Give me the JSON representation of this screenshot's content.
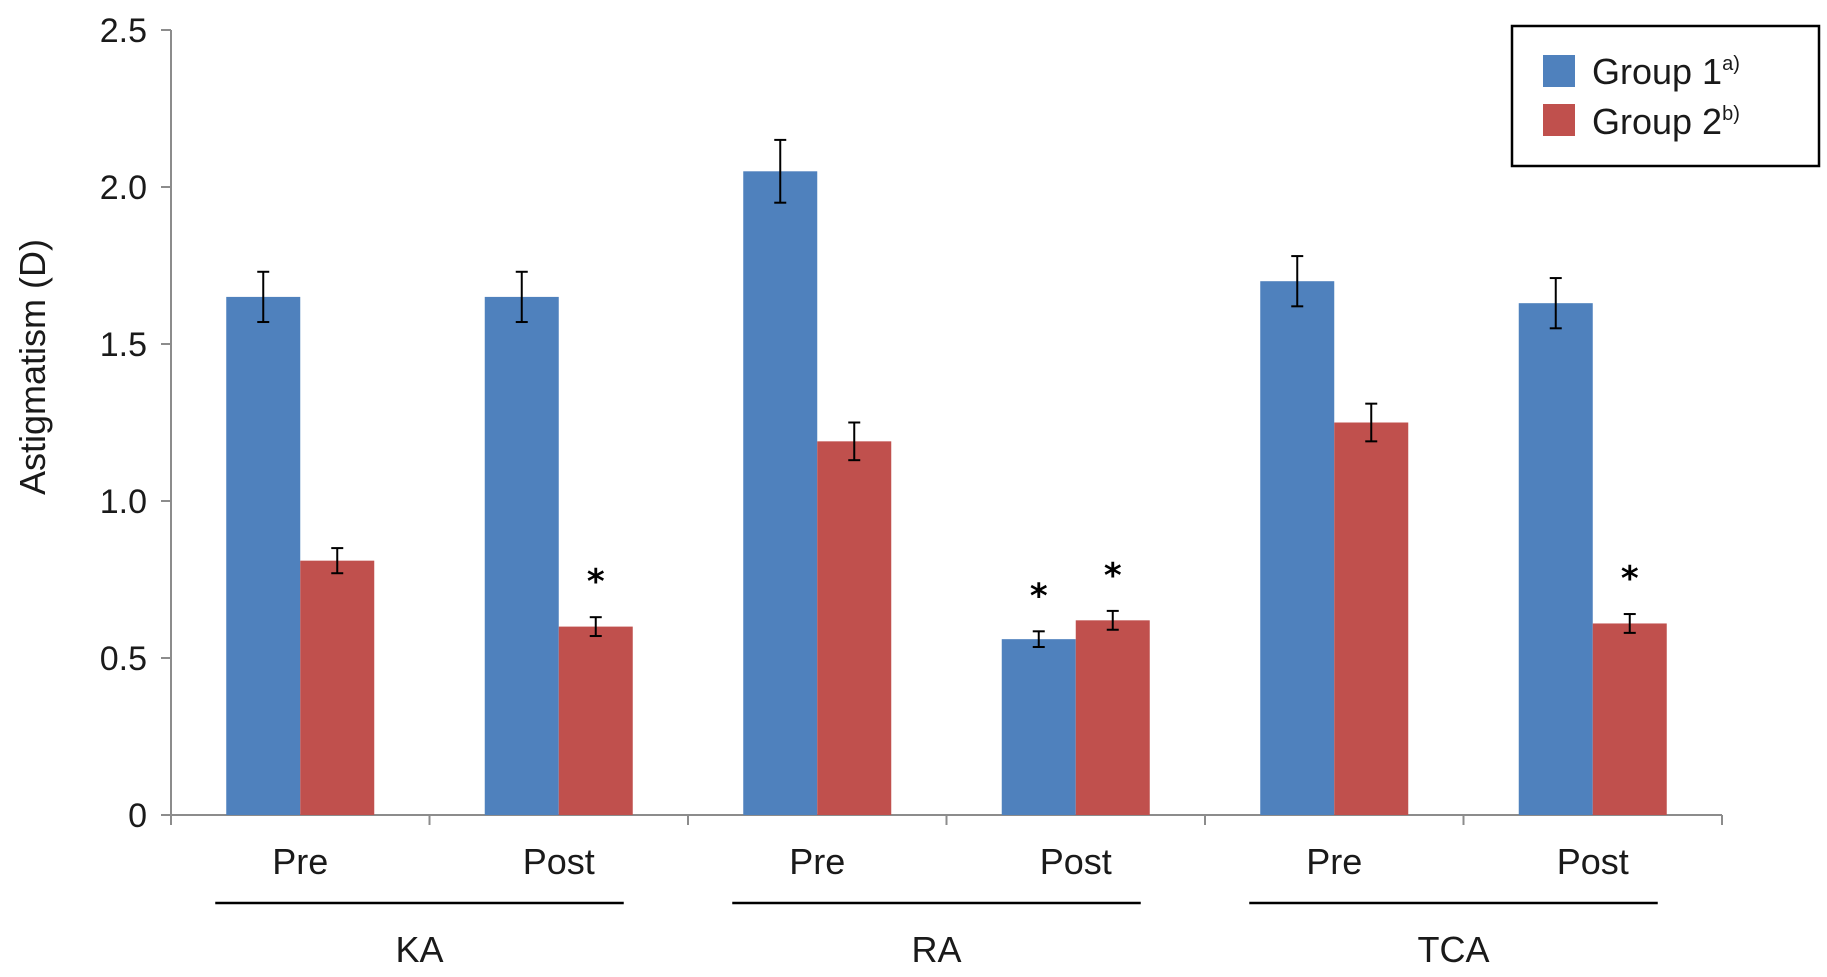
{
  "chart_data": {
    "type": "bar",
    "ylabel": "Astigmatism (D)",
    "ylim": [
      0,
      2.5
    ],
    "yticks": [
      "0",
      "0.5",
      "1.0",
      "1.5",
      "2.0",
      "2.5"
    ],
    "ytick_values": [
      0,
      0.5,
      1.0,
      1.5,
      2.0,
      2.5
    ],
    "categories": [
      "Pre",
      "Post",
      "Pre",
      "Post",
      "Pre",
      "Post"
    ],
    "groups": [
      {
        "label": "KA",
        "categories": [
          0,
          1
        ]
      },
      {
        "label": "RA",
        "categories": [
          2,
          3
        ]
      },
      {
        "label": "TCA",
        "categories": [
          4,
          5
        ]
      }
    ],
    "series": [
      {
        "name": "Group 1",
        "name_sup": "a)",
        "color": "#4f81bd",
        "values": [
          1.65,
          1.65,
          2.05,
          0.56,
          1.7,
          1.63
        ],
        "errors": [
          0.08,
          0.08,
          0.1,
          0.025,
          0.08,
          0.08
        ],
        "significant": [
          false,
          false,
          false,
          true,
          false,
          false
        ]
      },
      {
        "name": "Group 2",
        "name_sup": "b)",
        "color": "#c0504d",
        "values": [
          0.81,
          0.6,
          1.19,
          0.62,
          1.25,
          0.61
        ],
        "errors": [
          0.04,
          0.03,
          0.06,
          0.03,
          0.06,
          0.03
        ],
        "significant": [
          false,
          true,
          false,
          true,
          false,
          true
        ]
      }
    ],
    "significance_marker": "*",
    "legend_position": "top-right",
    "grid": false
  }
}
